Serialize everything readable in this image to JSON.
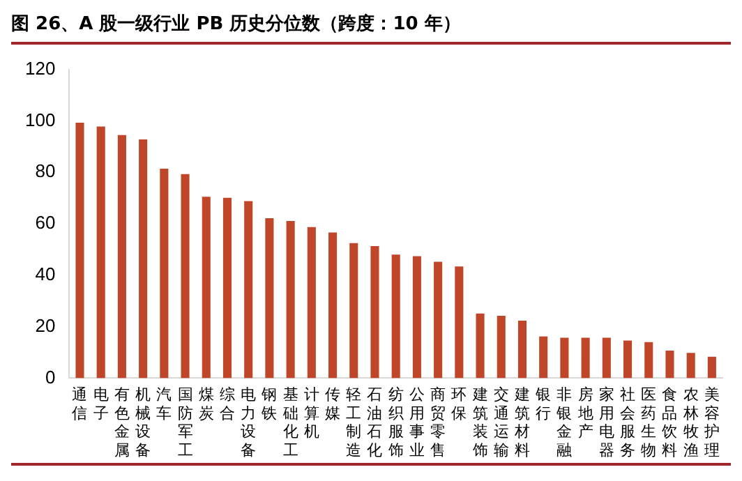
{
  "chart_data": {
    "type": "bar",
    "title": "图 26、A 股一级行业 PB 历史分位数（跨度：10 年）",
    "categories": [
      "通信",
      "电子",
      "有色金属",
      "机械设备",
      "汽车",
      "国防军工",
      "煤炭",
      "综合",
      "电力设备",
      "钢铁",
      "基础化工",
      "计算机",
      "传媒",
      "轻工制造",
      "石油石化",
      "纺织服饰",
      "公用事业",
      "商贸零售",
      "环保",
      "建筑装饰",
      "交通运输",
      "建筑材料",
      "银行",
      "非银金融",
      "房地产",
      "家用电器",
      "社会服务",
      "医药生物",
      "食品饮料",
      "农林牧渔",
      "美容护理"
    ],
    "values": [
      99.3,
      97.8,
      94.5,
      92.8,
      81.4,
      79.3,
      70.5,
      70.1,
      68.8,
      62.2,
      61.1,
      58.7,
      56.6,
      52.5,
      51.3,
      48.0,
      47.4,
      45.2,
      43.4,
      25.1,
      24.2,
      22.3,
      16.2,
      15.7,
      15.7,
      15.7,
      14.6,
      14.0,
      10.7,
      9.8,
      8.3
    ],
    "color": "#c0462a",
    "ylim": [
      0,
      120
    ],
    "yticks": [
      0,
      20,
      40,
      60,
      80,
      100,
      120
    ],
    "grid": false,
    "legend": false
  }
}
